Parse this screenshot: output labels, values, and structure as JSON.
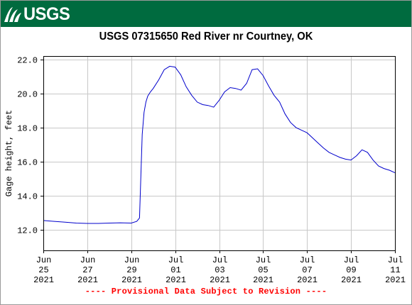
{
  "banner": {
    "logo_text": "USGS",
    "color": "#006b3f"
  },
  "chart_data": {
    "type": "line",
    "title": "USGS 07315650 Red River nr Courtney, OK",
    "xlabel": "",
    "ylabel": "Gage height, feet",
    "ylim": [
      10.8,
      22.2
    ],
    "xlim": [
      "2021-06-25 00:00",
      "2021-07-11 00:00"
    ],
    "yticks": [
      12.0,
      14.0,
      16.0,
      18.0,
      20.0,
      22.0
    ],
    "ytick_labels": [
      "12.0",
      "14.0",
      "16.0",
      "18.0",
      "20.0",
      "22.0"
    ],
    "xticks": [
      {
        "date": "2021-06-25",
        "lines": [
          "Jun",
          "25",
          "2021"
        ]
      },
      {
        "date": "2021-06-27",
        "lines": [
          "Jun",
          "27",
          "2021"
        ]
      },
      {
        "date": "2021-06-29",
        "lines": [
          "Jun",
          "29",
          "2021"
        ]
      },
      {
        "date": "2021-07-01",
        "lines": [
          "Jul",
          "01",
          "2021"
        ]
      },
      {
        "date": "2021-07-03",
        "lines": [
          "Jul",
          "03",
          "2021"
        ]
      },
      {
        "date": "2021-07-05",
        "lines": [
          "Jul",
          "05",
          "2021"
        ]
      },
      {
        "date": "2021-07-07",
        "lines": [
          "Jul",
          "07",
          "2021"
        ]
      },
      {
        "date": "2021-07-09",
        "lines": [
          "Jul",
          "09",
          "2021"
        ]
      },
      {
        "date": "2021-07-11",
        "lines": [
          "Jul",
          "11",
          "2021"
        ]
      }
    ],
    "grid": true,
    "line_color": "#0000cc",
    "series": [
      {
        "x": [
          "2021-06-25 00:00",
          "2021-06-25 12:00",
          "2021-06-26 00:00",
          "2021-06-26 12:00",
          "2021-06-27 00:00",
          "2021-06-27 12:00",
          "2021-06-28 00:00",
          "2021-06-28 12:00",
          "2021-06-29 00:00",
          "2021-06-29 06:00",
          "2021-06-29 09:00",
          "2021-06-29 12:00",
          "2021-06-29 14:00",
          "2021-06-29 16:00",
          "2021-06-29 18:00",
          "2021-06-29 21:00",
          "2021-06-30 00:00",
          "2021-06-30 06:00",
          "2021-06-30 12:00",
          "2021-06-30 18:00",
          "2021-07-01 00:00",
          "2021-07-01 06:00",
          "2021-07-01 12:00",
          "2021-07-01 18:00",
          "2021-07-02 00:00",
          "2021-07-02 06:00",
          "2021-07-02 12:00",
          "2021-07-02 18:00",
          "2021-07-03 00:00",
          "2021-07-03 06:00",
          "2021-07-03 12:00",
          "2021-07-03 18:00",
          "2021-07-04 00:00",
          "2021-07-04 06:00",
          "2021-07-04 12:00",
          "2021-07-04 18:00",
          "2021-07-05 00:00",
          "2021-07-05 06:00",
          "2021-07-05 12:00",
          "2021-07-05 18:00",
          "2021-07-06 00:00",
          "2021-07-06 06:00",
          "2021-07-06 12:00",
          "2021-07-06 18:00",
          "2021-07-07 00:00",
          "2021-07-07 06:00",
          "2021-07-07 12:00",
          "2021-07-07 18:00",
          "2021-07-08 00:00",
          "2021-07-08 06:00",
          "2021-07-08 12:00",
          "2021-07-08 18:00",
          "2021-07-09 00:00",
          "2021-07-09 06:00",
          "2021-07-09 12:00",
          "2021-07-09 18:00",
          "2021-07-10 00:00",
          "2021-07-10 06:00",
          "2021-07-10 12:00",
          "2021-07-10 18:00",
          "2021-07-11 00:00"
        ],
        "y": [
          12.55,
          12.5,
          12.45,
          12.4,
          12.38,
          12.38,
          12.4,
          12.42,
          12.4,
          12.5,
          12.7,
          17.6,
          18.9,
          19.5,
          19.85,
          20.1,
          20.3,
          20.8,
          21.4,
          21.6,
          21.55,
          21.1,
          20.4,
          19.9,
          19.5,
          19.35,
          19.3,
          19.2,
          19.6,
          20.1,
          20.35,
          20.3,
          20.2,
          20.6,
          21.4,
          21.45,
          21.05,
          20.45,
          19.9,
          19.5,
          18.8,
          18.3,
          18.0,
          17.85,
          17.7,
          17.4,
          17.1,
          16.8,
          16.55,
          16.4,
          16.25,
          16.15,
          16.1,
          16.35,
          16.7,
          16.55,
          16.1,
          15.75,
          15.6,
          15.5,
          15.35
        ]
      }
    ]
  },
  "footer": {
    "text": "---- Provisional Data Subject to Revision ----"
  }
}
